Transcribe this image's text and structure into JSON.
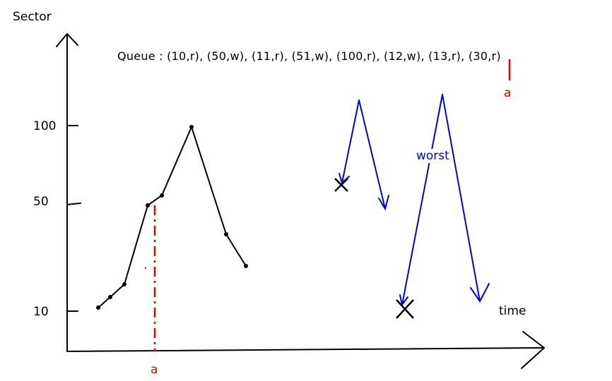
{
  "axes": {
    "y_label": "Sector",
    "x_label": "time",
    "y_ticks": [
      "100",
      "50",
      "10"
    ]
  },
  "queue_text": "Queue : (10,r), (50,w), (11,r), (51,w), (100,r), (12,w), (13,r), (30,r)",
  "markers": {
    "a_queue": "a",
    "a_axis": "a"
  },
  "annotation_worst": "worst",
  "colors": {
    "axis": "#000000",
    "trace": "#000000",
    "marker": "#e00000",
    "sweep": "#0000e0"
  }
}
